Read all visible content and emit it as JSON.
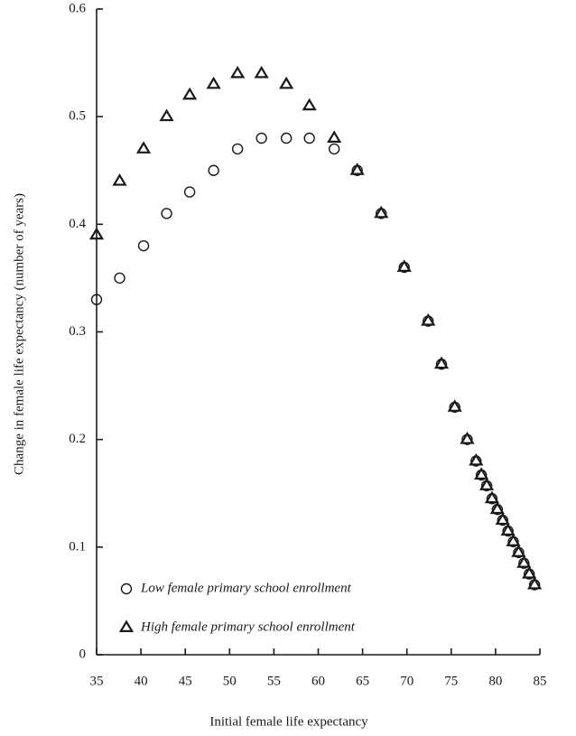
{
  "chart_data": {
    "type": "scatter",
    "x_label": "Initial female life expectancy",
    "y_label": "Change in female life expectancy (number of years)",
    "xlim": [
      35,
      85
    ],
    "xticks": [
      35,
      40,
      45,
      50,
      55,
      60,
      65,
      70,
      75,
      80,
      85
    ],
    "ylim": [
      0,
      0.6
    ],
    "yticks": [
      0,
      0.1,
      0.2,
      0.3,
      0.4,
      0.5,
      0.6
    ],
    "grid": false,
    "legend": "lower left",
    "x": [
      35,
      37.6,
      40.3,
      42.9,
      45.5,
      48.2,
      50.9,
      53.6,
      56.4,
      59.0,
      61.8,
      64.4,
      67.1,
      69.7,
      72.4,
      73.9,
      75.4,
      76.8,
      77.8,
      78.4,
      79.0,
      79.6,
      80.2,
      80.8,
      81.4,
      82.0,
      82.6,
      83.2,
      83.8,
      84.4
    ],
    "series": [
      {
        "name": "Low female primary school enrollment",
        "marker": "circle",
        "color": "#1a1a1a",
        "values": [
          0.33,
          0.35,
          0.38,
          0.41,
          0.43,
          0.45,
          0.47,
          0.48,
          0.48,
          0.48,
          0.47,
          0.45,
          0.41,
          0.36,
          0.31,
          0.27,
          0.23,
          0.2,
          0.18,
          0.167,
          0.157,
          0.145,
          0.135,
          0.125,
          0.115,
          0.105,
          0.095,
          0.085,
          0.075,
          0.065
        ]
      },
      {
        "name": "High female primary school enrollment",
        "marker": "triangle",
        "color": "#1a1a1a",
        "values": [
          0.39,
          0.44,
          0.47,
          0.5,
          0.52,
          0.53,
          0.54,
          0.54,
          0.53,
          0.51,
          0.48,
          0.45,
          0.41,
          0.36,
          0.31,
          0.27,
          0.23,
          0.2,
          0.18,
          0.167,
          0.157,
          0.145,
          0.135,
          0.125,
          0.115,
          0.105,
          0.095,
          0.085,
          0.075,
          0.065
        ]
      }
    ]
  }
}
